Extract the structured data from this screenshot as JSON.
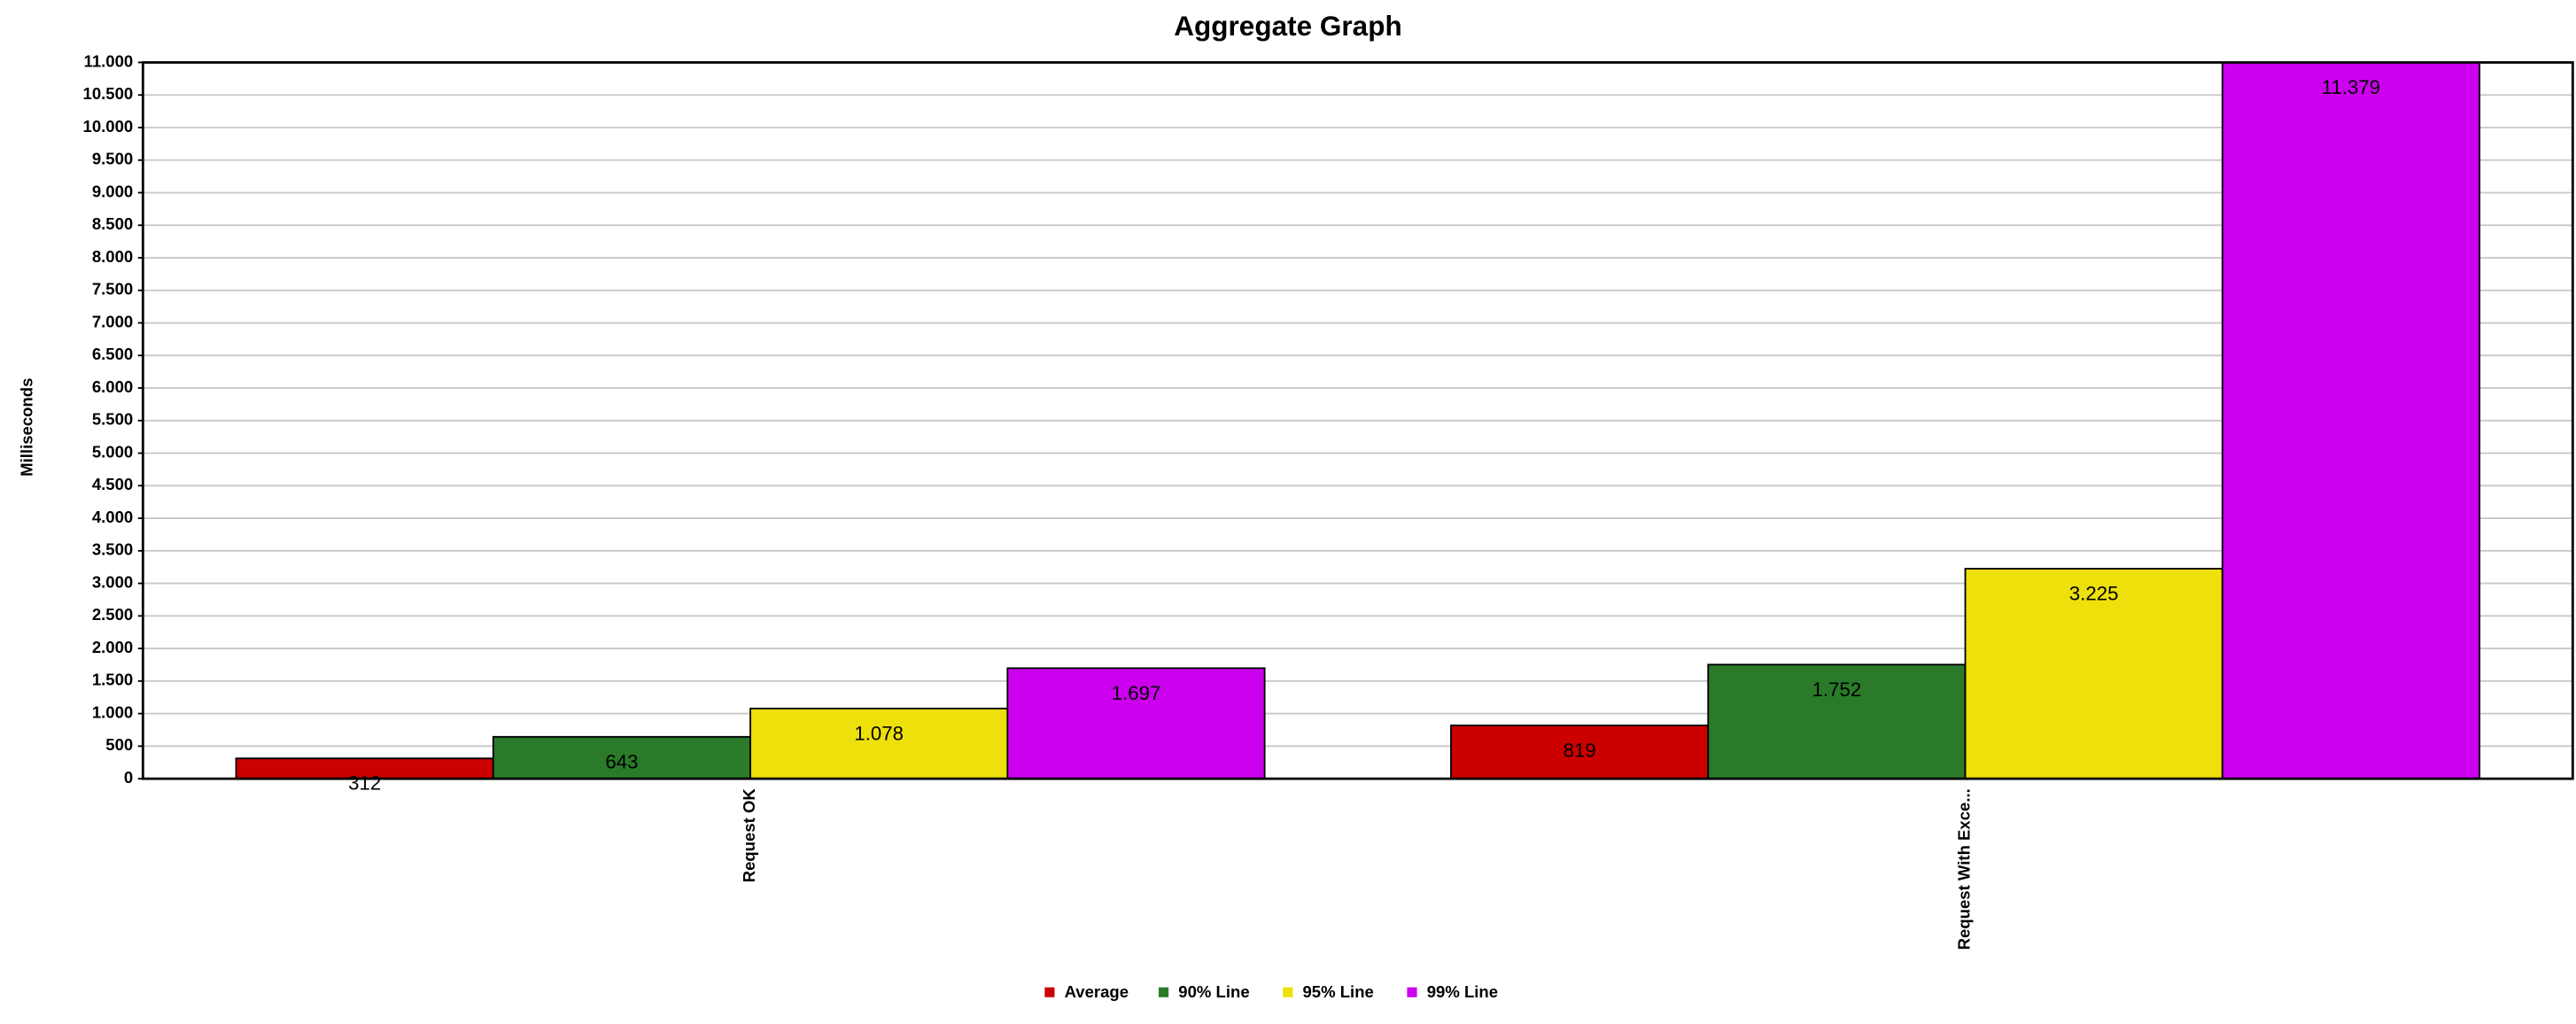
{
  "chart_data": {
    "type": "bar",
    "title": "Aggregate Graph",
    "y_label": "Milliseconds",
    "categories": [
      "Request OK",
      "Request With Exce..."
    ],
    "series": [
      {
        "name": "Average",
        "color": "#cc0000",
        "values": [
          312,
          819
        ]
      },
      {
        "name": "90% Line",
        "color": "#2a7a2a",
        "values": [
          643,
          1752
        ],
        "value_labels": [
          "643",
          "1.752"
        ]
      },
      {
        "name": "95% Line",
        "color": "#eee00a",
        "values": [
          1078,
          3225
        ],
        "value_labels": [
          "1.078",
          "3.225"
        ]
      },
      {
        "name": "99% Line",
        "color": "#cc00ee",
        "values": [
          1697,
          11379
        ],
        "value_labels": [
          "1.697",
          "11.379"
        ]
      }
    ],
    "ylim": [
      0,
      11000
    ],
    "yticks": [
      0,
      500,
      {
        "value": 1000,
        "label": "1.000"
      },
      {
        "value": 1500,
        "label": "1.500"
      },
      {
        "value": 2000,
        "label": "2.000"
      },
      {
        "value": 2500,
        "label": "2.500"
      },
      {
        "value": 3000,
        "label": "3.000"
      },
      {
        "value": 3500,
        "label": "3.500"
      },
      {
        "value": 4000,
        "label": "4.000"
      },
      {
        "value": 4500,
        "label": "4.500"
      },
      {
        "value": 5000,
        "label": "5.000"
      },
      {
        "value": 5500,
        "label": "5.500"
      },
      {
        "value": 6000,
        "label": "6.000"
      },
      {
        "value": 6500,
        "label": "6.500"
      },
      {
        "value": 7000,
        "label": "7.000"
      },
      {
        "value": 7500,
        "label": "7.500"
      },
      {
        "value": 8000,
        "label": "8.000"
      },
      {
        "value": 8500,
        "label": "8.500"
      },
      {
        "value": 9000,
        "label": "9.000"
      },
      {
        "value": 9500,
        "label": "9.500"
      },
      {
        "value": 10000,
        "label": "10.000"
      },
      {
        "value": 10500,
        "label": "10.500"
      },
      {
        "value": 11000,
        "label": "11.000"
      }
    ],
    "grid": true
  }
}
